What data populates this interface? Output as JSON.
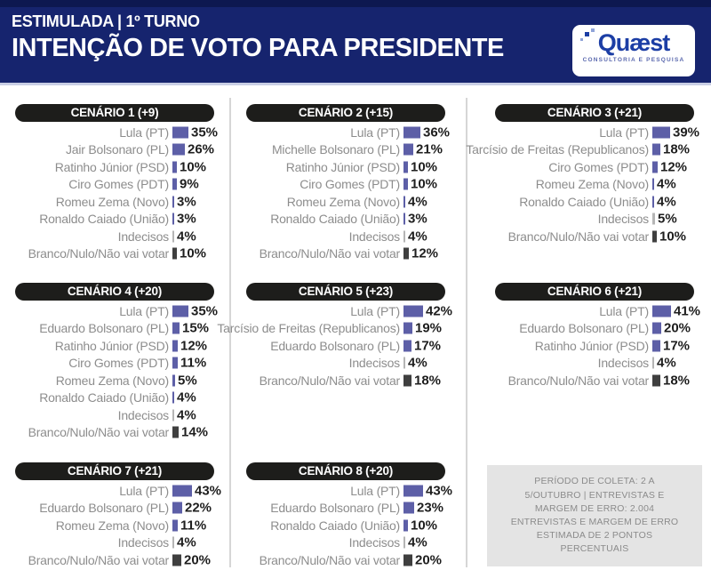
{
  "header": {
    "kicker": "ESTIMULADA | 1º TURNO",
    "title": "INTENÇÃO DE VOTO PARA PRESIDENTE",
    "logo": {
      "brand": "Quæst",
      "tagline": "CONSULTORIA E PESQUISA"
    }
  },
  "colors": {
    "header_bg": "#16246E",
    "header_stripe": "#0D1850",
    "pill_bg": "#1D1D1B",
    "candidate_bar": "#5D5FA7",
    "undecided_bar": "#B5B5B5",
    "blank_bar": "#3F3F3F",
    "logo_blue": "#1C3EA5"
  },
  "chart_data": [
    {
      "type": "bar",
      "orientation": "horizontal",
      "title": "CENÁRIO 1 (+9)",
      "categories": [
        "Lula (PT)",
        "Jair Bolsonaro (PL)",
        "Ratinho Júnior (PSD)",
        "Ciro Gomes (PDT)",
        "Romeu Zema (Novo)",
        "Ronaldo Caiado (União)",
        "Indecisos",
        "Branco/Nulo/Não vai votar"
      ],
      "values": [
        35,
        26,
        10,
        9,
        3,
        3,
        4,
        10
      ],
      "unit": "%"
    },
    {
      "type": "bar",
      "orientation": "horizontal",
      "title": "CENÁRIO 2 (+15)",
      "categories": [
        "Lula (PT)",
        "Michelle Bolsonaro (PL)",
        "Ratinho Júnior (PSD)",
        "Ciro Gomes (PDT)",
        "Romeu Zema (Novo)",
        "Ronaldo Caiado (União)",
        "Indecisos",
        "Branco/Nulo/Não vai votar"
      ],
      "values": [
        36,
        21,
        10,
        10,
        4,
        3,
        4,
        12
      ],
      "unit": "%"
    },
    {
      "type": "bar",
      "orientation": "horizontal",
      "title": "CENÁRIO 3 (+21)",
      "categories": [
        "Lula (PT)",
        "Tarcísio de Freitas (Republicanos)",
        "Ciro Gomes (PDT)",
        "Romeu Zema (Novo)",
        "Ronaldo Caiado (União)",
        "Indecisos",
        "Branco/Nulo/Não vai votar"
      ],
      "values": [
        39,
        18,
        12,
        4,
        4,
        5,
        10
      ],
      "unit": "%"
    },
    {
      "type": "bar",
      "orientation": "horizontal",
      "title": "CENÁRIO 4 (+20)",
      "categories": [
        "Lula (PT)",
        "Eduardo Bolsonaro (PL)",
        "Ratinho Júnior (PSD)",
        "Ciro Gomes (PDT)",
        "Romeu Zema (Novo)",
        "Ronaldo Caiado (União)",
        "Indecisos",
        "Branco/Nulo/Não vai votar"
      ],
      "values": [
        35,
        15,
        12,
        11,
        5,
        4,
        4,
        14
      ],
      "unit": "%"
    },
    {
      "type": "bar",
      "orientation": "horizontal",
      "title": "CENÁRIO 5 (+23)",
      "categories": [
        "Lula (PT)",
        "Tarcísio de Freitas (Republicanos)",
        "Eduardo Bolsonaro (PL)",
        "Indecisos",
        "Branco/Nulo/Não vai votar"
      ],
      "values": [
        42,
        19,
        17,
        4,
        18
      ],
      "unit": "%"
    },
    {
      "type": "bar",
      "orientation": "horizontal",
      "title": "CENÁRIO 6 (+21)",
      "categories": [
        "Lula (PT)",
        "Eduardo Bolsonaro (PL)",
        "Ratinho Júnior (PSD)",
        "Indecisos",
        "Branco/Nulo/Não vai votar"
      ],
      "values": [
        41,
        20,
        17,
        4,
        18
      ],
      "unit": "%"
    },
    {
      "type": "bar",
      "orientation": "horizontal",
      "title": "CENÁRIO 7 (+21)",
      "categories": [
        "Lula (PT)",
        "Eduardo Bolsonaro (PL)",
        "Romeu Zema (Novo)",
        "Indecisos",
        "Branco/Nulo/Não vai votar"
      ],
      "values": [
        43,
        22,
        11,
        4,
        20
      ],
      "unit": "%"
    },
    {
      "type": "bar",
      "orientation": "horizontal",
      "title": "CENÁRIO 8 (+20)",
      "categories": [
        "Lula (PT)",
        "Eduardo Bolsonaro (PL)",
        "Ronaldo Caiado (União)",
        "Indecisos",
        "Branco/Nulo/Não vai votar"
      ],
      "values": [
        43,
        23,
        10,
        4,
        20
      ],
      "unit": "%"
    }
  ],
  "footnote": "PERÍODO DE COLETA: 2 A\n5/OUTUBRO | ENTREVISTAS E\nMARGEM DE ERRO: 2.004\nENTREVISTAS E MARGEM DE ERRO\nESTIMADA DE 2 PONTOS\nPERCENTUAIS"
}
